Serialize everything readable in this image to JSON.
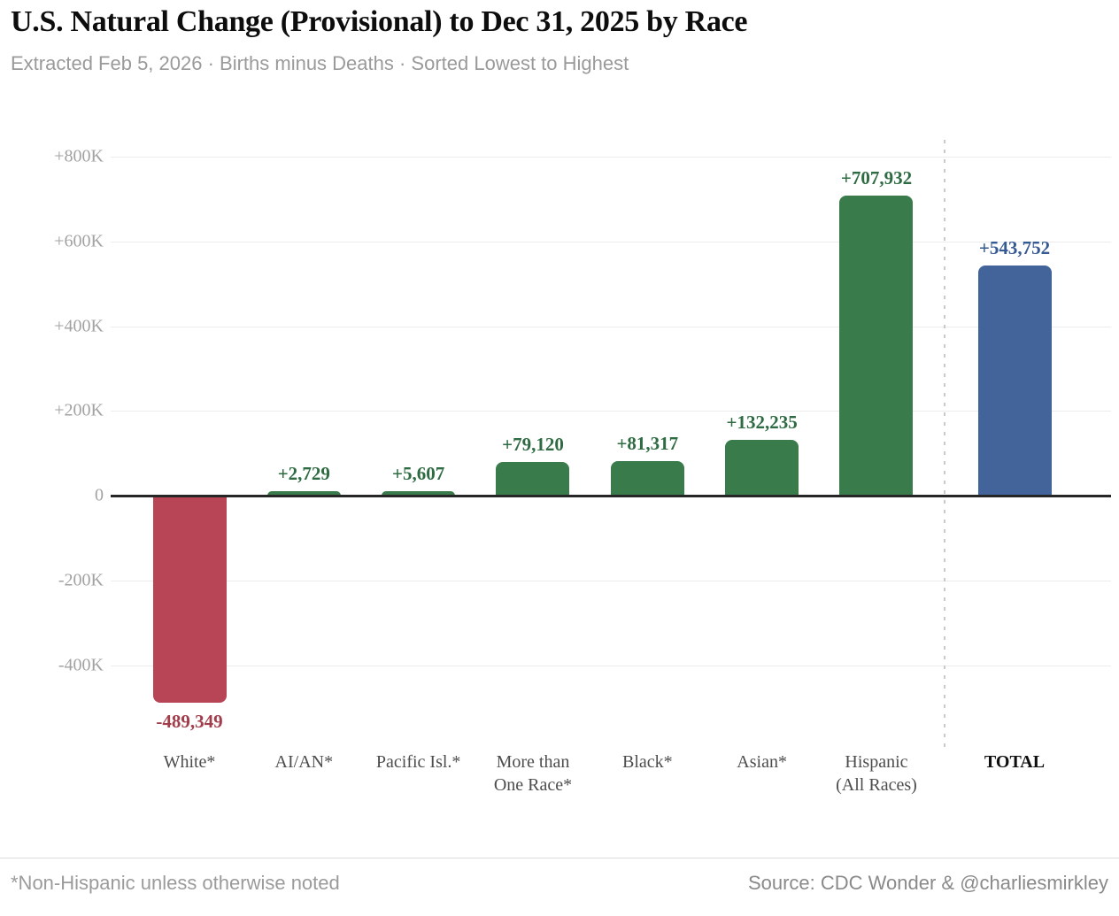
{
  "header": {
    "title": "U.S. Natural Change (Provisional) to Dec 31, 2025 by Race",
    "subtitle": "Extracted Feb 5, 2026 · Births minus Deaths · Sorted Lowest to Highest"
  },
  "footer": {
    "note": "*Non-Hispanic unless otherwise noted",
    "source": "Source: CDC Wonder & @charliesmirkley"
  },
  "chart_data": {
    "type": "bar",
    "title": "U.S. Natural Change (Provisional) to Dec 31, 2025 by Race",
    "xlabel": "",
    "ylabel": "",
    "ylim": [
      -560000,
      840000
    ],
    "grid": true,
    "legend": false,
    "categories": [
      "White*",
      "AI/AN*",
      "Pacific Isl.*",
      "More than\nOne Race*",
      "Black*",
      "Asian*",
      "Hispanic\n(All Races)",
      "TOTAL"
    ],
    "values": [
      -489349,
      2729,
      5607,
      79120,
      81317,
      132235,
      707932,
      543752
    ],
    "value_labels": [
      "-489,349",
      "+2,729",
      "+5,607",
      "+79,120",
      "+81,317",
      "+132,235",
      "+707,932",
      "+543,752"
    ],
    "bar_colors": [
      "#b84555",
      "#3a7b4c",
      "#3a7b4c",
      "#3a7b4c",
      "#3a7b4c",
      "#3a7b4c",
      "#3a7b4c",
      "#42649a"
    ],
    "value_label_colors": [
      "#a23d4b",
      "#2e6b42",
      "#2e6b42",
      "#2e6b42",
      "#2e6b42",
      "#2e6b42",
      "#2e6b42",
      "#365a92"
    ],
    "y_ticks": [
      {
        "label": "+800K",
        "value": 800000
      },
      {
        "label": "+600K",
        "value": 600000
      },
      {
        "label": "+400K",
        "value": 400000
      },
      {
        "label": "+200K",
        "value": 200000
      },
      {
        "label": "0",
        "value": 0
      },
      {
        "label": "-200K",
        "value": -200000
      },
      {
        "label": "-400K",
        "value": -400000
      }
    ],
    "separator_before_category": "TOTAL",
    "colors": {
      "negative": "#b84555",
      "positive": "#3a7b4c",
      "total": "#42649a"
    }
  }
}
